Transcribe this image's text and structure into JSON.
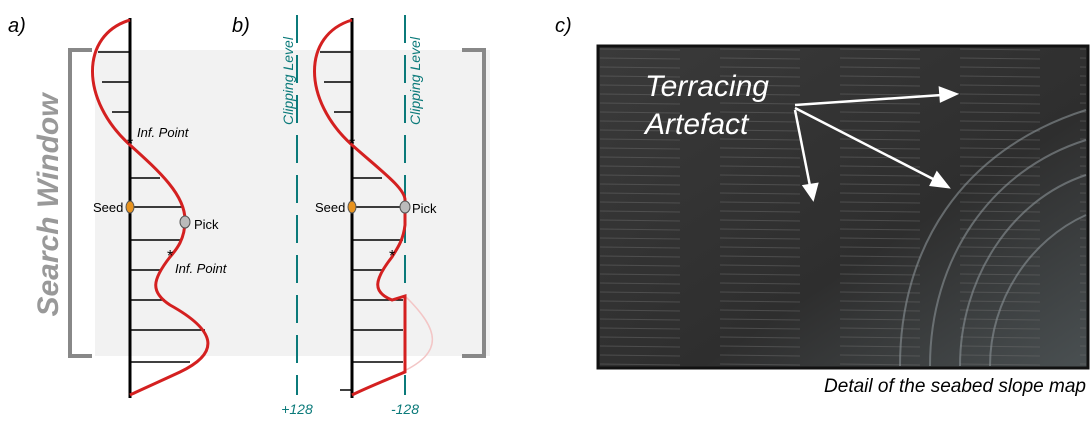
{
  "panel_a": {
    "label": "a)",
    "side_label": "Search Window",
    "inflection_points": [
      "Inf. Point",
      "Inf. Point"
    ],
    "seed": "Seed",
    "pick": "Pick"
  },
  "panel_b": {
    "label": "b)",
    "clipping_levels": [
      "Clipping Level",
      "Clipping Level"
    ],
    "seed": "Seed",
    "pick": "Pick",
    "scale_labels": [
      "+128",
      "-128"
    ]
  },
  "panel_c": {
    "label": "c)",
    "annotation": [
      "Terracing",
      "Artefact"
    ],
    "caption": "Detail of the seabed slope map"
  }
}
